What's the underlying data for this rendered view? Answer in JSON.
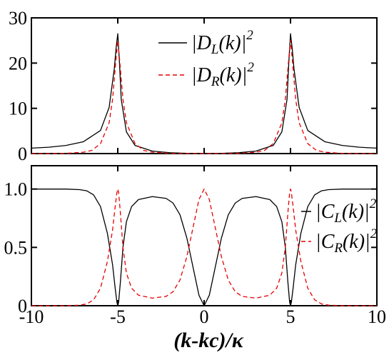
{
  "chart_data": [
    {
      "type": "line",
      "xlim": [
        -10,
        10
      ],
      "ylim": [
        0,
        30
      ],
      "yticks": [
        0,
        10,
        20,
        30
      ],
      "grid": false,
      "legend_placement": "top-center",
      "series": [
        {
          "name": "|D_L(k)|^2",
          "color": "#000000",
          "style": "solid",
          "x": [
            -10,
            -9,
            -8,
            -7,
            -6,
            -5.5,
            -5.2,
            -5.1,
            -5,
            -4.9,
            -4.8,
            -4.5,
            -4,
            -3,
            -2,
            -1,
            0,
            1,
            2,
            3,
            4,
            4.5,
            4.8,
            4.9,
            5,
            5.1,
            5.2,
            5.5,
            6,
            7,
            8,
            9,
            10
          ],
          "y": [
            1.2,
            1.4,
            1.8,
            2.6,
            5.1,
            10.2,
            18.8,
            23.2,
            26.5,
            20,
            12,
            4.8,
            1.8,
            0.55,
            0.2,
            0.05,
            0,
            0.05,
            0.2,
            0.55,
            1.8,
            4.8,
            12,
            20,
            26.5,
            23.2,
            18.8,
            10.2,
            5.1,
            2.6,
            1.8,
            1.4,
            1.2
          ]
        },
        {
          "name": "|D_R(k)|^2",
          "color": "#e60000",
          "style": "dashed",
          "x": [
            -10,
            -9,
            -8,
            -7,
            -6.5,
            -6,
            -5.5,
            -5.3,
            -5.1,
            -5,
            -4.9,
            -4.7,
            -4.5,
            -4,
            -3.5,
            -3,
            -2,
            0,
            2,
            3,
            3.5,
            4,
            4.5,
            4.7,
            4.9,
            5,
            5.1,
            5.3,
            5.5,
            6,
            6.5,
            7,
            8,
            9,
            10
          ],
          "y": [
            0,
            0,
            0.05,
            0.3,
            0.7,
            2.2,
            6.8,
            12,
            21,
            25,
            21,
            12,
            6.8,
            2.2,
            0.7,
            0.3,
            0.05,
            0,
            0.05,
            0.3,
            0.7,
            2.2,
            6.8,
            12,
            21,
            25,
            21,
            12,
            6.8,
            2.2,
            0.7,
            0.3,
            0.05,
            0,
            0
          ]
        }
      ],
      "legend": [
        {
          "label_main": "|D",
          "label_sub": "L",
          "label_tail": "(k)|",
          "label_sup": "2",
          "color": "#000000",
          "style": "solid"
        },
        {
          "label_main": "|D",
          "label_sub": "R",
          "label_tail": "(k)|",
          "label_sup": "2",
          "color": "#e60000",
          "style": "dashed"
        }
      ]
    },
    {
      "type": "line",
      "xlim": [
        -10,
        10
      ],
      "ylim": [
        0,
        1.2
      ],
      "yticks": [
        0,
        0.5,
        1.0
      ],
      "ytick_labels": [
        "0",
        "0.5",
        "1.0"
      ],
      "xticks": [
        -10,
        -5,
        0,
        5,
        10
      ],
      "xlabel": "(k-kc)/κ",
      "grid": false,
      "legend_placement": "right-center",
      "series": [
        {
          "name": "|C_L(k)|^2",
          "color": "#000000",
          "style": "solid",
          "x": [
            -10,
            -8,
            -7.2,
            -6.8,
            -6.4,
            -6,
            -5.6,
            -5.3,
            -5.15,
            -5.05,
            -5,
            -4.95,
            -4.85,
            -4.7,
            -4.5,
            -4.2,
            -3.8,
            -3,
            -2.2,
            -1.8,
            -1.4,
            -1,
            -0.6,
            -0.3,
            0,
            0.3,
            0.6,
            1,
            1.4,
            1.8,
            2.2,
            3,
            3.8,
            4.2,
            4.5,
            4.7,
            4.85,
            4.95,
            5,
            5.05,
            5.15,
            5.3,
            5.6,
            6,
            6.4,
            6.8,
            7.2,
            8,
            10
          ],
          "y": [
            1,
            1,
            0.995,
            0.985,
            0.95,
            0.85,
            0.62,
            0.35,
            0.15,
            0.03,
            0,
            0.03,
            0.2,
            0.5,
            0.72,
            0.85,
            0.91,
            0.935,
            0.92,
            0.88,
            0.78,
            0.58,
            0.3,
            0.09,
            0,
            0.09,
            0.3,
            0.58,
            0.78,
            0.88,
            0.92,
            0.935,
            0.91,
            0.85,
            0.72,
            0.5,
            0.2,
            0.03,
            0,
            0.03,
            0.15,
            0.35,
            0.62,
            0.85,
            0.95,
            0.985,
            0.995,
            1,
            1
          ]
        },
        {
          "name": "|C_R(k)|^2",
          "color": "#e60000",
          "style": "dashed",
          "x": [
            -10,
            -8,
            -7.2,
            -6.8,
            -6.4,
            -6,
            -5.6,
            -5.3,
            -5.15,
            -5.05,
            -5,
            -4.95,
            -4.85,
            -4.7,
            -4.5,
            -4.2,
            -3.8,
            -3,
            -2.2,
            -1.8,
            -1.4,
            -1,
            -0.6,
            -0.3,
            0,
            0.3,
            0.6,
            1,
            1.4,
            1.8,
            2.2,
            3,
            3.8,
            4.2,
            4.5,
            4.7,
            4.85,
            4.95,
            5,
            5.05,
            5.15,
            5.3,
            5.6,
            6,
            6.4,
            6.8,
            7.2,
            8,
            10
          ],
          "y": [
            0,
            0,
            0.005,
            0.015,
            0.05,
            0.15,
            0.38,
            0.65,
            0.85,
            0.97,
            1,
            0.97,
            0.8,
            0.5,
            0.28,
            0.15,
            0.09,
            0.065,
            0.08,
            0.12,
            0.22,
            0.42,
            0.7,
            0.91,
            1,
            0.91,
            0.7,
            0.42,
            0.22,
            0.12,
            0.08,
            0.065,
            0.09,
            0.15,
            0.28,
            0.5,
            0.8,
            0.97,
            1,
            0.97,
            0.85,
            0.65,
            0.38,
            0.15,
            0.05,
            0.015,
            0.005,
            0,
            0
          ]
        }
      ],
      "legend": [
        {
          "label_main": "|C",
          "label_sub": "L",
          "label_tail": "(k)|",
          "label_sup": "2",
          "color": "#000000",
          "style": "solid"
        },
        {
          "label_main": "|C",
          "label_sub": "R",
          "label_tail": "(k)|",
          "label_sup": "2",
          "color": "#e60000",
          "style": "dashed"
        }
      ]
    }
  ]
}
